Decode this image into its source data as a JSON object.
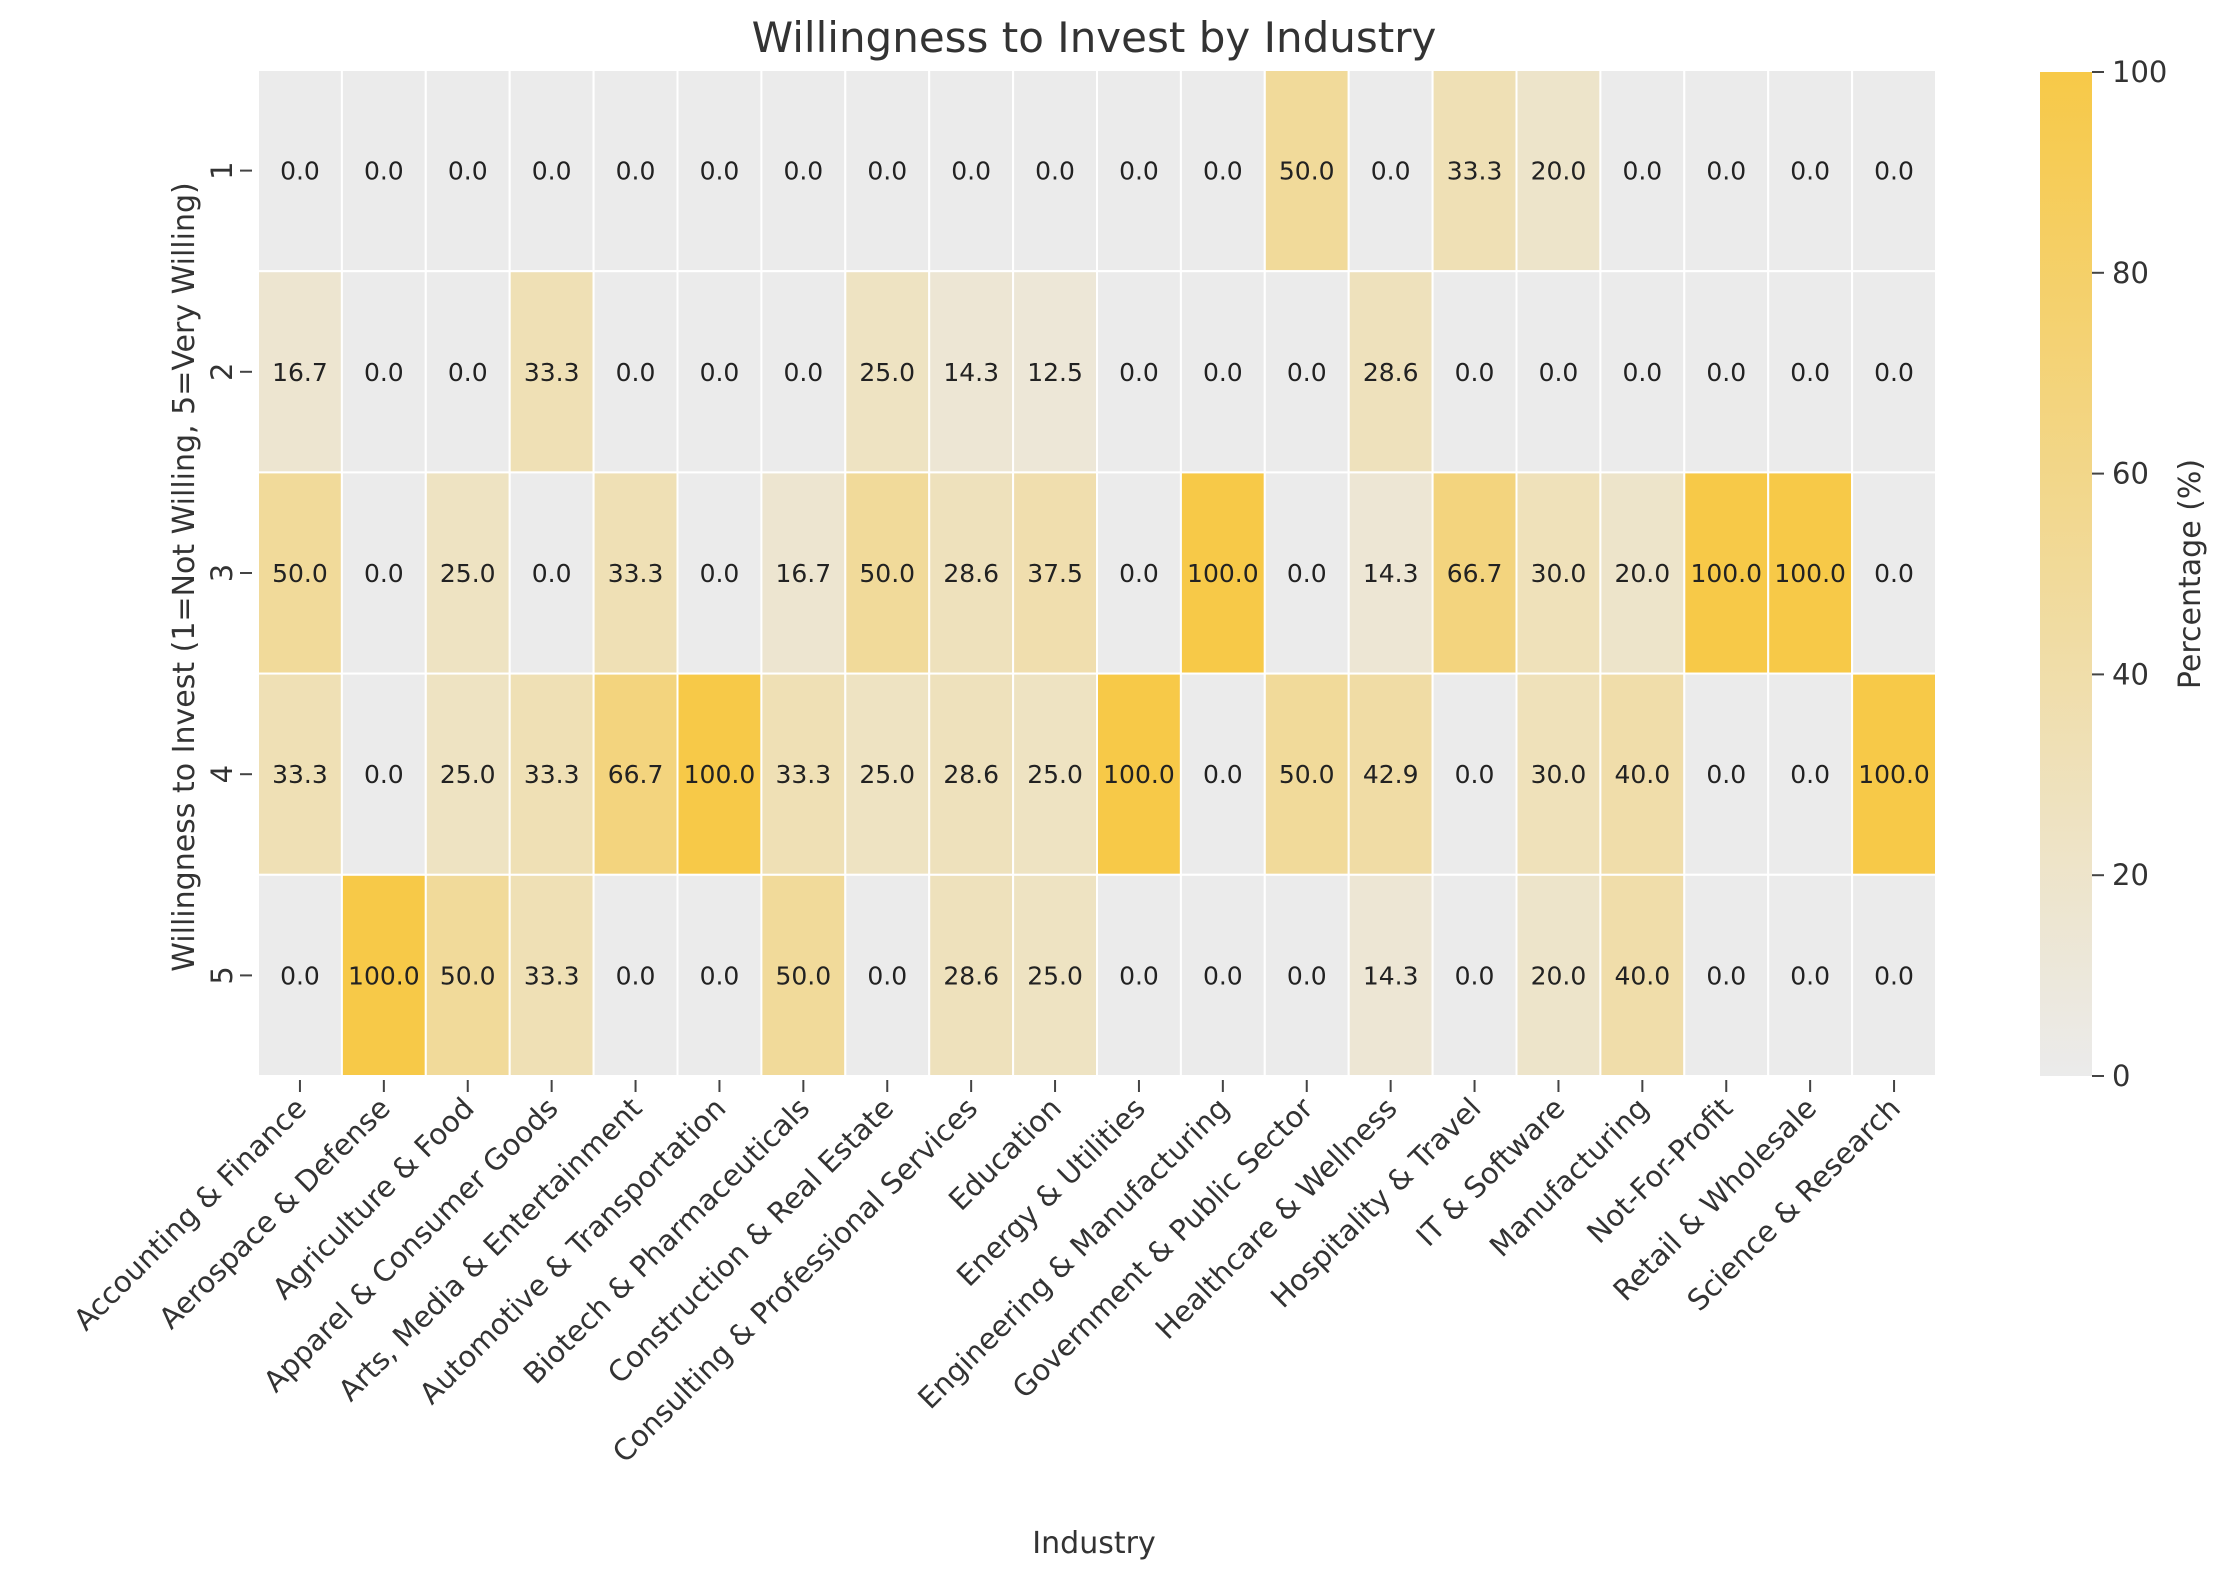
{
  "chart_data": {
    "type": "heatmap",
    "title": "Willingness to Invest by Industry",
    "xlabel": "Industry",
    "ylabel": "Willingness to Invest (1=Not Willing, 5=Very Willing)",
    "colorbar_label": "Percentage (%)",
    "colorbar_range": [
      0,
      100
    ],
    "colorbar_ticks": [
      0,
      20,
      40,
      60,
      80,
      100
    ],
    "color_low": "#ebebeb",
    "color_high": "#f7c948",
    "x_categories": [
      "Accounting & Finance",
      "Aerospace & Defense",
      "Agriculture & Food",
      "Apparel & Consumer Goods",
      "Arts, Media & Entertainment",
      "Automotive & Transportation",
      "Biotech & Pharmaceuticals",
      "Construction & Real Estate",
      "Consulting & Professional Services",
      "Education",
      "Energy & Utilities",
      "Engineering & Manufacturing",
      "Government & Public Sector",
      "Healthcare & Wellness",
      "Hospitality & Travel",
      "IT & Software",
      "Manufacturing",
      "Not-For-Profit",
      "Retail & Wholesale",
      "Science & Research"
    ],
    "y_categories": [
      "1",
      "2",
      "3",
      "4",
      "5"
    ],
    "values": [
      [
        0.0,
        0.0,
        0.0,
        0.0,
        0.0,
        0.0,
        0.0,
        0.0,
        0.0,
        0.0,
        0.0,
        0.0,
        50.0,
        0.0,
        33.3,
        20.0,
        0.0,
        0.0,
        0.0,
        0.0
      ],
      [
        16.7,
        0.0,
        0.0,
        33.3,
        0.0,
        0.0,
        0.0,
        25.0,
        14.3,
        12.5,
        0.0,
        0.0,
        0.0,
        28.6,
        0.0,
        0.0,
        0.0,
        0.0,
        0.0,
        0.0
      ],
      [
        50.0,
        0.0,
        25.0,
        0.0,
        33.3,
        0.0,
        16.7,
        50.0,
        28.6,
        37.5,
        0.0,
        100.0,
        0.0,
        14.3,
        66.7,
        30.0,
        20.0,
        100.0,
        100.0,
        0.0
      ],
      [
        33.3,
        0.0,
        25.0,
        33.3,
        66.7,
        100.0,
        33.3,
        25.0,
        28.6,
        25.0,
        100.0,
        0.0,
        50.0,
        42.9,
        0.0,
        30.0,
        40.0,
        0.0,
        0.0,
        100.0
      ],
      [
        0.0,
        100.0,
        50.0,
        33.3,
        0.0,
        0.0,
        50.0,
        0.0,
        28.6,
        25.0,
        0.0,
        0.0,
        0.0,
        14.3,
        0.0,
        20.0,
        40.0,
        0.0,
        0.0,
        0.0
      ]
    ]
  }
}
